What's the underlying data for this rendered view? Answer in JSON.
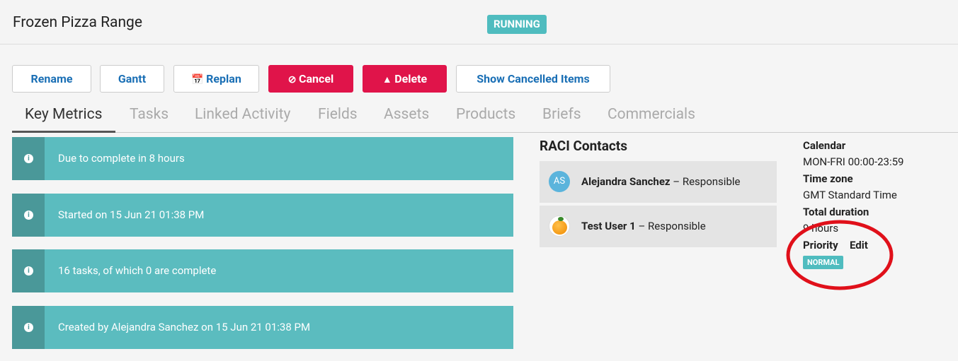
{
  "header": {
    "title": "Frozen Pizza Range",
    "status": "RUNNING"
  },
  "buttons": [
    "Rename",
    "Gantt",
    "Replan",
    "Cancel",
    "Delete",
    "Show Cancelled Items"
  ],
  "tabs": [
    "Key Metrics",
    "Tasks",
    "Linked Activity",
    "Fields",
    "Assets",
    "Products",
    "Briefs",
    "Commercials"
  ],
  "metrics": [
    "Due to complete in 8 hours",
    "Started on 15 Jun 21 01:38 PM",
    "16 tasks, of which 0 are complete",
    "Created by Alejandra Sanchez on 15 Jun 21 01:38 PM"
  ],
  "raci": {
    "title": "RACI Contacts",
    "contacts": [
      {
        "initials": "AS",
        "name": "Alejandra Sanchez",
        "role": "– Responsible"
      },
      {
        "name": "Test User 1",
        "role": "– Responsible"
      }
    ]
  },
  "details": {
    "calendar_label": "Calendar",
    "calendar": "MON-FRI 00:00-23:59",
    "timezone_label": "Time zone",
    "timezone": "GMT Standard Time",
    "duration_label": "Total duration",
    "duration": "9 hours",
    "priority_label": "Priority",
    "edit": "Edit",
    "priority": "NORMAL"
  }
}
